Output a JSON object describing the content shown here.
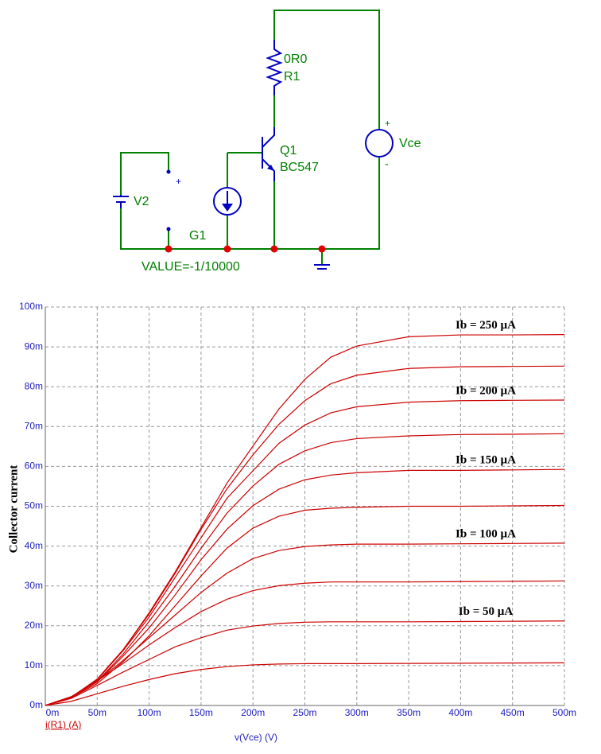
{
  "schematic": {
    "r1_value": "0R0",
    "r1_name": "R1",
    "q1_name": "Q1",
    "q1_model": "BC547",
    "vce_name": "Vce",
    "vce_plus": "+",
    "vce_minus": "-",
    "v2_name": "V2",
    "v2_plus": "+",
    "g1_name": "G1",
    "g1_value": "VALUE=-1/10000"
  },
  "chart_data": {
    "type": "line",
    "y_label": "Collector current",
    "x_label": "v(Vce) (V)",
    "trace_label": "i(R1) (A)",
    "grid": true,
    "x": [
      0,
      0.025,
      0.05,
      0.075,
      0.1,
      0.125,
      0.15,
      0.175,
      0.2,
      0.225,
      0.25,
      0.275,
      0.3,
      0.35,
      0.4,
      0.45,
      0.5
    ],
    "xlim": [
      0,
      0.5
    ],
    "xticks": [
      {
        "value": 0,
        "label": "0m"
      },
      {
        "value": 0.05,
        "label": "50m"
      },
      {
        "value": 0.1,
        "label": "100m"
      },
      {
        "value": 0.15,
        "label": "150m"
      },
      {
        "value": 0.2,
        "label": "200m"
      },
      {
        "value": 0.25,
        "label": "250m"
      },
      {
        "value": 0.3,
        "label": "300m"
      },
      {
        "value": 0.35,
        "label": "350m"
      },
      {
        "value": 0.4,
        "label": "400m"
      },
      {
        "value": 0.45,
        "label": "450m"
      },
      {
        "value": 0.5,
        "label": "500m"
      }
    ],
    "ylim": [
      0,
      0.1
    ],
    "yticks": [
      {
        "value": 0,
        "label": "0m"
      },
      {
        "value": 0.01,
        "label": "10m"
      },
      {
        "value": 0.02,
        "label": "20m"
      },
      {
        "value": 0.03,
        "label": "30m"
      },
      {
        "value": 0.04,
        "label": "40m"
      },
      {
        "value": 0.05,
        "label": "50m"
      },
      {
        "value": 0.06,
        "label": "60m"
      },
      {
        "value": 0.07,
        "label": "70m"
      },
      {
        "value": 0.08,
        "label": "80m"
      },
      {
        "value": 0.09,
        "label": "90m"
      },
      {
        "value": 0.1,
        "label": "100m"
      }
    ],
    "series": [
      {
        "color": "#cc0000",
        "values": [
          0,
          0.00105,
          0.00294,
          0.00483,
          0.00651,
          0.00798,
          0.00903,
          0.00977,
          0.01019,
          0.0104,
          0.0105,
          0.0105,
          0.0105,
          0.01055,
          0.0106,
          0.01066,
          0.01071
        ]
      },
      {
        "name": "Ib = 50 µA",
        "color": "#cc0000",
        "values": [
          0,
          0.00179,
          0.00504,
          0.0084,
          0.01155,
          0.0147,
          0.01701,
          0.0189,
          0.01995,
          0.02058,
          0.0209,
          0.021,
          0.021,
          0.021,
          0.02106,
          0.02113,
          0.02121
        ]
      },
      {
        "color": "#cc0000",
        "values": [
          0,
          0.00217,
          0.0062,
          0.01054,
          0.01519,
          0.01953,
          0.02356,
          0.02666,
          0.02883,
          0.03007,
          0.03069,
          0.031,
          0.031,
          0.031,
          0.03109,
          0.03116,
          0.03125
        ]
      },
      {
        "name": "Ib = 100 µA",
        "color": "#cc0000",
        "values": [
          0,
          0.00223,
          0.00608,
          0.01134,
          0.01701,
          0.02268,
          0.02835,
          0.03321,
          0.03686,
          0.03888,
          0.03989,
          0.0403,
          0.0405,
          0.0405,
          0.04058,
          0.04066,
          0.04074
        ]
      },
      {
        "color": "#cc0000",
        "values": [
          0,
          0.002,
          0.0055,
          0.011,
          0.0175,
          0.025,
          0.0325,
          0.0395,
          0.0445,
          0.0475,
          0.049,
          0.0495,
          0.04975,
          0.05,
          0.05,
          0.0501,
          0.0502
        ]
      },
      {
        "name": "Ib = 150 µA",
        "color": "#cc0000",
        "values": [
          0,
          0.00212,
          0.0059,
          0.01239,
          0.01947,
          0.02773,
          0.03658,
          0.04425,
          0.05015,
          0.05428,
          0.05664,
          0.05782,
          0.05841,
          0.059,
          0.059,
          0.05912,
          0.05924
        ]
      },
      {
        "color": "#cc0000",
        "values": [
          0,
          0.00218,
          0.00612,
          0.01292,
          0.02108,
          0.02992,
          0.03944,
          0.04828,
          0.05508,
          0.06052,
          0.06392,
          0.06596,
          0.06698,
          0.06766,
          0.068,
          0.06807,
          0.0682
        ]
      },
      {
        "name": "Ib = 200 µA",
        "color": "#cc0000",
        "values": [
          0,
          0.00214,
          0.0065,
          0.01377,
          0.02219,
          0.03213,
          0.04208,
          0.05202,
          0.05891,
          0.06579,
          0.07038,
          0.07344,
          0.07497,
          0.07612,
          0.0765,
          0.07658,
          0.07665
        ]
      },
      {
        "color": "#cc0000",
        "values": [
          0,
          0.00204,
          0.00663,
          0.01403,
          0.02295,
          0.03315,
          0.0442,
          0.0544,
          0.0629,
          0.07055,
          0.0765,
          0.08075,
          0.08288,
          0.08458,
          0.085,
          0.08509,
          0.08517
        ]
      },
      {
        "name": "Ib = 250 µA",
        "color": "#cc0000",
        "values": [
          0,
          0.00186,
          0.00651,
          0.01395,
          0.02325,
          0.03348,
          0.04464,
          0.0558,
          0.0651,
          0.0744,
          0.08184,
          0.08742,
          0.09021,
          0.09254,
          0.093,
          0.093,
          0.09309
        ]
      }
    ]
  }
}
